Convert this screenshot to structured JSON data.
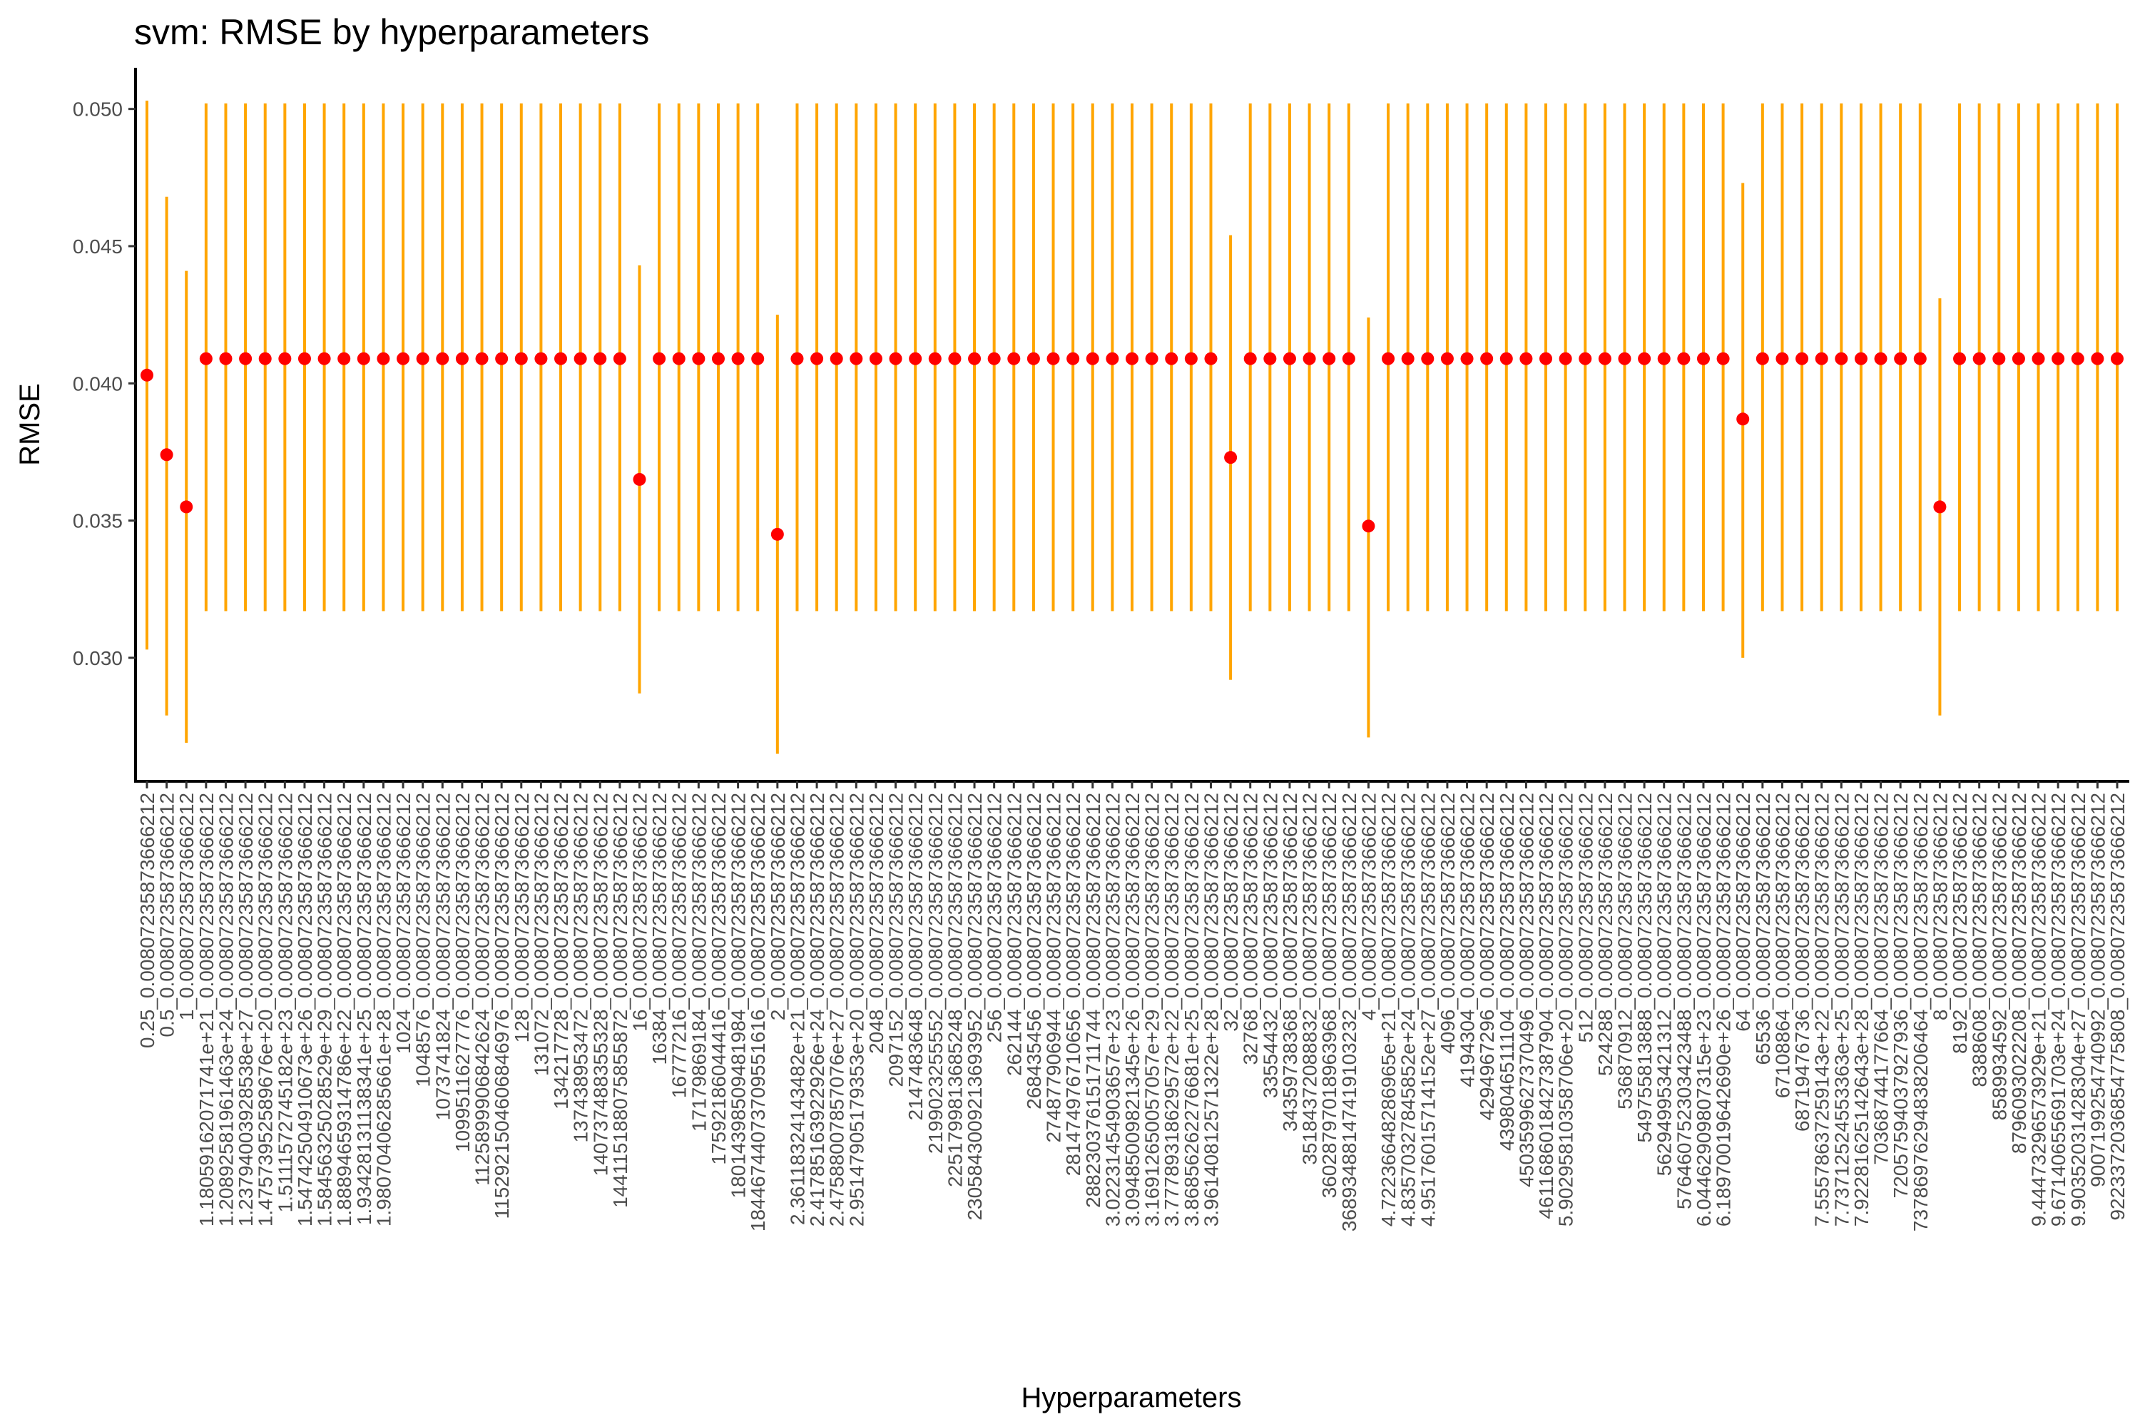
{
  "chart_data": {
    "type": "scatter",
    "title": "svm: RMSE by hyperparameters",
    "xlabel": "Hyperparameters",
    "ylabel": "RMSE",
    "ylim": [
      0.0255,
      0.0515
    ],
    "yticks": [
      0.03,
      0.035,
      0.04,
      0.045,
      0.05
    ],
    "ytick_labels": [
      "0.030",
      "0.035",
      "0.040",
      "0.045",
      "0.050"
    ],
    "grid": false,
    "legend": "none",
    "colors": {
      "point": "#ff0000",
      "errorbar": "#ffa500",
      "axis": "#000000"
    },
    "categories": [
      "0.25_0.00807235873666212",
      "0.5_0.00807235873666212",
      "1_0.00807235873666212",
      "1.18059162071741e+21_0.00807235873666212",
      "1.20892581961463e+24_0.00807235873666212",
      "1.23794003928538e+27_0.00807235873666212",
      "1.47573952589676e+20_0.00807235873666212",
      "1.5111572745182e+23_0.00807235873666212",
      "1.54742504910673e+26_0.00807235873666212",
      "1.58456325028529e+29_0.00807235873666212",
      "1.88894659314786e+22_0.00807235873666212",
      "1.93428131138341e+25_0.00807235873666212",
      "1.98070406285661e+28_0.00807235873666212",
      "1024_0.00807235873666212",
      "1048576_0.00807235873666212",
      "1073741824_0.00807235873666212",
      "1099511627776_0.00807235873666212",
      "1125899906842624_0.00807235873666212",
      "1152921504606846976_0.00807235873666212",
      "128_0.00807235873666212",
      "131072_0.00807235873666212",
      "134217728_0.00807235873666212",
      "137438953472_0.00807235873666212",
      "140737488355328_0.00807235873666212",
      "144115188075855872_0.00807235873666212",
      "16_0.00807235873666212",
      "16384_0.00807235873666212",
      "16777216_0.00807235873666212",
      "17179869184_0.00807235873666212",
      "17592186044416_0.00807235873666212",
      "18014398509481984_0.00807235873666212",
      "18446744073709551616_0.00807235873666212",
      "2_0.00807235873666212",
      "2.36118324143482e+21_0.00807235873666212",
      "2.41785163922926e+24_0.00807235873666212",
      "2.47588007857076e+27_0.00807235873666212",
      "2.95147905179353e+20_0.00807235873666212",
      "2048_0.00807235873666212",
      "2097152_0.00807235873666212",
      "2147483648_0.00807235873666212",
      "2199023255552_0.00807235873666212",
      "2251799813685248_0.00807235873666212",
      "2305843009213693952_0.00807235873666212",
      "256_0.00807235873666212",
      "262144_0.00807235873666212",
      "268435456_0.00807235873666212",
      "274877906944_0.00807235873666212",
      "281474976710656_0.00807235873666212",
      "288230376151711744_0.00807235873666212",
      "3.02231454903657e+23_0.00807235873666212",
      "3.09485009821345e+26_0.00807235873666212",
      "3.16912650057057e+29_0.00807235873666212",
      "3.77789318629572e+22_0.00807235873666212",
      "3.86856262276681e+25_0.00807235873666212",
      "3.96140812571322e+28_0.00807235873666212",
      "32_0.00807235873666212",
      "32768_0.00807235873666212",
      "33554432_0.00807235873666212",
      "34359738368_0.00807235873666212",
      "35184372088832_0.00807235873666212",
      "36028797018963968_0.00807235873666212",
      "36893488147419103232_0.00807235873666212",
      "4_0.00807235873666212",
      "4.72236648286965e+21_0.00807235873666212",
      "4.83570327845852e+24_0.00807235873666212",
      "4.95176015714152e+27_0.00807235873666212",
      "4096_0.00807235873666212",
      "4194304_0.00807235873666212",
      "4294967296_0.00807235873666212",
      "4398046511104_0.00807235873666212",
      "4503599627370496_0.00807235873666212",
      "4611686018427387904_0.00807235873666212",
      "5.90295810358706e+20_0.00807235873666212",
      "512_0.00807235873666212",
      "524288_0.00807235873666212",
      "536870912_0.00807235873666212",
      "549755813888_0.00807235873666212",
      "562949953421312_0.00807235873666212",
      "576460752303423488_0.00807235873666212",
      "6.04462909807315e+23_0.00807235873666212",
      "6.18970019642690e+26_0.00807235873666212",
      "64_0.00807235873666212",
      "65536_0.00807235873666212",
      "67108864_0.00807235873666212",
      "68719476736_0.00807235873666212",
      "7.55578637259143e+22_0.00807235873666212",
      "7.73712524553363e+25_0.00807235873666212",
      "7.92281625142643e+28_0.00807235873666212",
      "70368744177664_0.00807235873666212",
      "72057594037927936_0.00807235873666212",
      "73786976294838206464_0.00807235873666212",
      "8_0.00807235873666212",
      "8192_0.00807235873666212",
      "8388608_0.00807235873666212",
      "8589934592_0.00807235873666212",
      "8796093022208_0.00807235873666212",
      "9.44473296573929e+21_0.00807235873666212",
      "9.67140655691703e+24_0.00807235873666212",
      "9.90352031428304e+27_0.00807235873666212",
      "9007199254740992_0.00807235873666212",
      "9223372036854775808_0.00807235873666212"
    ],
    "series": [
      {
        "type": "point",
        "values": [
          0.0403,
          0.0374,
          0.0355,
          0.0409,
          0.0409,
          0.0409,
          0.0409,
          0.0409,
          0.0409,
          0.0409,
          0.0409,
          0.0409,
          0.0409,
          0.0409,
          0.0409,
          0.0409,
          0.0409,
          0.0409,
          0.0409,
          0.0409,
          0.0409,
          0.0409,
          0.0409,
          0.0409,
          0.0409,
          0.0365,
          0.0409,
          0.0409,
          0.0409,
          0.0409,
          0.0409,
          0.0409,
          0.0345,
          0.0409,
          0.0409,
          0.0409,
          0.0409,
          0.0409,
          0.0409,
          0.0409,
          0.0409,
          0.0409,
          0.0409,
          0.0409,
          0.0409,
          0.0409,
          0.0409,
          0.0409,
          0.0409,
          0.0409,
          0.0409,
          0.0409,
          0.0409,
          0.0409,
          0.0409,
          0.0373,
          0.0409,
          0.0409,
          0.0409,
          0.0409,
          0.0409,
          0.0409,
          0.0348,
          0.0409,
          0.0409,
          0.0409,
          0.0409,
          0.0409,
          0.0409,
          0.0409,
          0.0409,
          0.0409,
          0.0409,
          0.0409,
          0.0409,
          0.0409,
          0.0409,
          0.0409,
          0.0409,
          0.0409,
          0.0409,
          0.0387,
          0.0409,
          0.0409,
          0.0409,
          0.0409,
          0.0409,
          0.0409,
          0.0409,
          0.0409,
          0.0409,
          0.0355,
          0.0409,
          0.0409,
          0.0409,
          0.0409,
          0.0409,
          0.0409,
          0.0409,
          0.0409,
          0.0409
        ],
        "lower": [
          0.0303,
          0.0279,
          0.0269,
          0.0317,
          0.0317,
          0.0317,
          0.0317,
          0.0317,
          0.0317,
          0.0317,
          0.0317,
          0.0317,
          0.0317,
          0.0317,
          0.0317,
          0.0317,
          0.0317,
          0.0317,
          0.0317,
          0.0317,
          0.0317,
          0.0317,
          0.0317,
          0.0317,
          0.0317,
          0.0287,
          0.0317,
          0.0317,
          0.0317,
          0.0317,
          0.0317,
          0.0317,
          0.0265,
          0.0317,
          0.0317,
          0.0317,
          0.0317,
          0.0317,
          0.0317,
          0.0317,
          0.0317,
          0.0317,
          0.0317,
          0.0317,
          0.0317,
          0.0317,
          0.0317,
          0.0317,
          0.0317,
          0.0317,
          0.0317,
          0.0317,
          0.0317,
          0.0317,
          0.0317,
          0.0292,
          0.0317,
          0.0317,
          0.0317,
          0.0317,
          0.0317,
          0.0317,
          0.0271,
          0.0317,
          0.0317,
          0.0317,
          0.0317,
          0.0317,
          0.0317,
          0.0317,
          0.0317,
          0.0317,
          0.0317,
          0.0317,
          0.0317,
          0.0317,
          0.0317,
          0.0317,
          0.0317,
          0.0317,
          0.0317,
          0.03,
          0.0317,
          0.0317,
          0.0317,
          0.0317,
          0.0317,
          0.0317,
          0.0317,
          0.0317,
          0.0317,
          0.0279,
          0.0317,
          0.0317,
          0.0317,
          0.0317,
          0.0317,
          0.0317,
          0.0317,
          0.0317,
          0.0317
        ],
        "upper": [
          0.0503,
          0.0468,
          0.0441,
          0.0502,
          0.0502,
          0.0502,
          0.0502,
          0.0502,
          0.0502,
          0.0502,
          0.0502,
          0.0502,
          0.0502,
          0.0502,
          0.0502,
          0.0502,
          0.0502,
          0.0502,
          0.0502,
          0.0502,
          0.0502,
          0.0502,
          0.0502,
          0.0502,
          0.0502,
          0.0443,
          0.0502,
          0.0502,
          0.0502,
          0.0502,
          0.0502,
          0.0502,
          0.0425,
          0.0502,
          0.0502,
          0.0502,
          0.0502,
          0.0502,
          0.0502,
          0.0502,
          0.0502,
          0.0502,
          0.0502,
          0.0502,
          0.0502,
          0.0502,
          0.0502,
          0.0502,
          0.0502,
          0.0502,
          0.0502,
          0.0502,
          0.0502,
          0.0502,
          0.0502,
          0.0454,
          0.0502,
          0.0502,
          0.0502,
          0.0502,
          0.0502,
          0.0502,
          0.0424,
          0.0502,
          0.0502,
          0.0502,
          0.0502,
          0.0502,
          0.0502,
          0.0502,
          0.0502,
          0.0502,
          0.0502,
          0.0502,
          0.0502,
          0.0502,
          0.0502,
          0.0502,
          0.0502,
          0.0502,
          0.0502,
          0.0473,
          0.0502,
          0.0502,
          0.0502,
          0.0502,
          0.0502,
          0.0502,
          0.0502,
          0.0502,
          0.0502,
          0.0431,
          0.0502,
          0.0502,
          0.0502,
          0.0502,
          0.0502,
          0.0502,
          0.0502,
          0.0502,
          0.0502
        ]
      }
    ]
  }
}
